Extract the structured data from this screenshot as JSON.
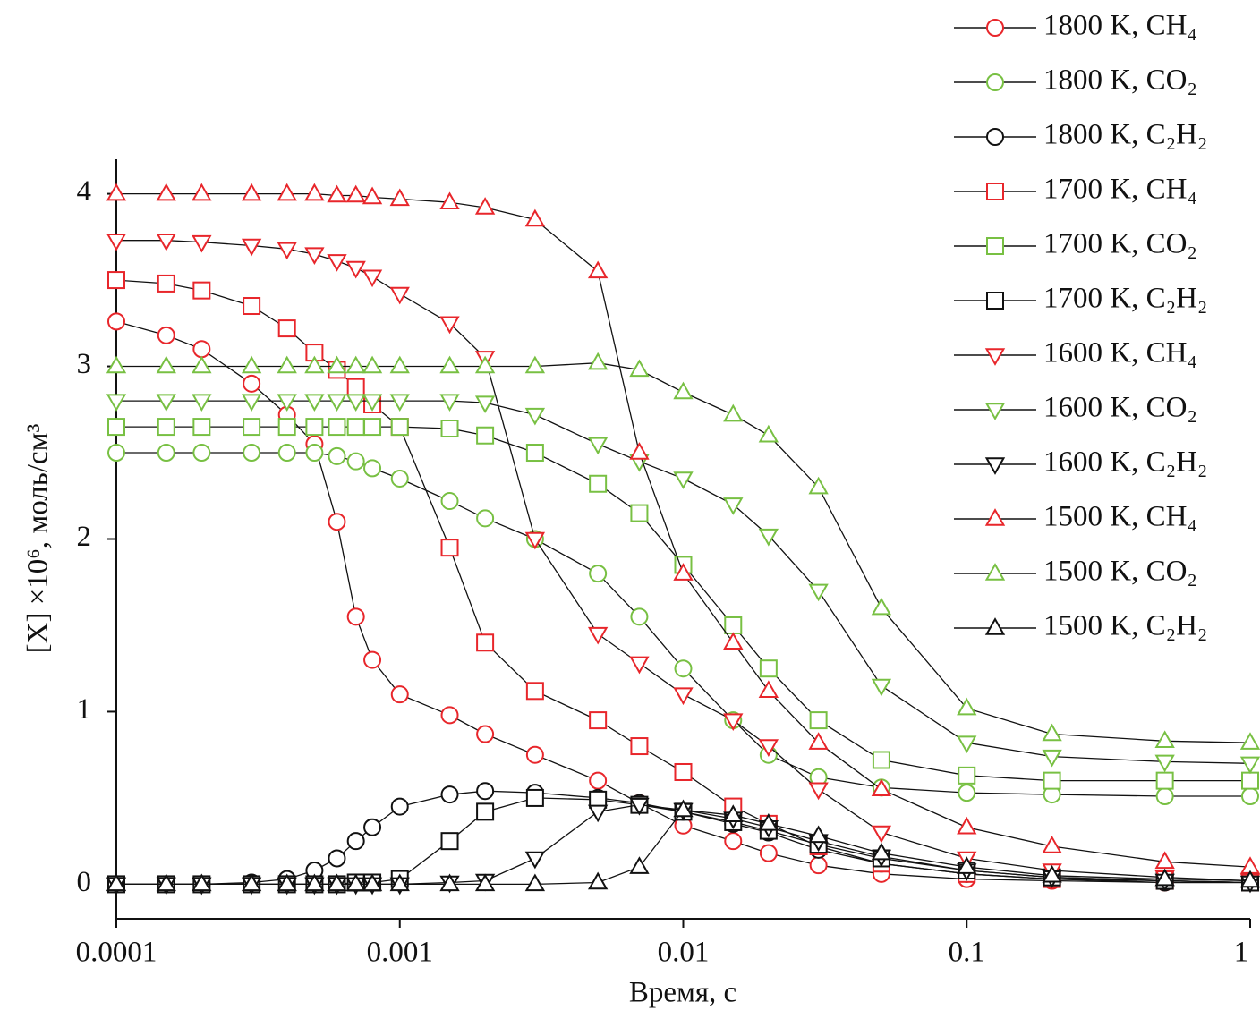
{
  "chart_data": {
    "type": "line",
    "xscale": "log",
    "x_label": "Время, с",
    "y_label": "[X] ×10⁶, моль/см³",
    "xlim": [
      0.0001,
      1
    ],
    "ylim": [
      -0.2,
      4.2
    ],
    "xticks": [
      0.0001,
      0.001,
      0.01,
      0.1,
      1
    ],
    "yticks": [
      0,
      1,
      2,
      3,
      4
    ],
    "legend": "top-right",
    "x": [
      0.0001,
      0.00015,
      0.0002,
      0.0003,
      0.0004,
      0.0005,
      0.0006,
      0.0007,
      0.0008,
      0.001,
      0.0015,
      0.002,
      0.003,
      0.005,
      0.007,
      0.01,
      0.015,
      0.02,
      0.03,
      0.05,
      0.1,
      0.2,
      0.5,
      1
    ],
    "series": [
      {
        "name": "1800 K, CH₄",
        "color": "#e8262b",
        "marker": "circle",
        "values": [
          3.26,
          3.18,
          3.1,
          2.9,
          2.72,
          2.55,
          2.1,
          1.55,
          1.3,
          1.1,
          0.98,
          0.87,
          0.75,
          0.6,
          0.47,
          0.34,
          0.25,
          0.18,
          0.11,
          0.06,
          0.03,
          0.02,
          0.01,
          0.01
        ]
      },
      {
        "name": "1800 K, CO₂",
        "color": "#78c043",
        "marker": "circle",
        "values": [
          2.5,
          2.5,
          2.5,
          2.5,
          2.5,
          2.5,
          2.48,
          2.45,
          2.41,
          2.35,
          2.22,
          2.12,
          2.0,
          1.8,
          1.55,
          1.25,
          0.95,
          0.75,
          0.62,
          0.56,
          0.53,
          0.52,
          0.51,
          0.51
        ]
      },
      {
        "name": "1800 K, C₂H₂",
        "color": "#111111",
        "marker": "circle",
        "values": [
          0,
          0,
          0,
          0.01,
          0.03,
          0.08,
          0.15,
          0.25,
          0.33,
          0.45,
          0.52,
          0.54,
          0.53,
          0.5,
          0.47,
          0.42,
          0.35,
          0.3,
          0.2,
          0.12,
          0.06,
          0.03,
          0.01,
          0.01
        ]
      },
      {
        "name": "1700 K, CH₄",
        "color": "#e8262b",
        "marker": "square",
        "values": [
          3.5,
          3.48,
          3.44,
          3.35,
          3.22,
          3.08,
          2.98,
          2.88,
          2.78,
          2.65,
          1.95,
          1.4,
          1.12,
          0.95,
          0.8,
          0.65,
          0.45,
          0.35,
          0.22,
          0.12,
          0.06,
          0.03,
          0.02,
          0.01
        ]
      },
      {
        "name": "1700 K, CO₂",
        "color": "#78c043",
        "marker": "square",
        "values": [
          2.65,
          2.65,
          2.65,
          2.65,
          2.65,
          2.65,
          2.65,
          2.65,
          2.65,
          2.65,
          2.64,
          2.6,
          2.5,
          2.32,
          2.15,
          1.85,
          1.5,
          1.25,
          0.95,
          0.72,
          0.63,
          0.6,
          0.6,
          0.6
        ]
      },
      {
        "name": "1700 K, C₂H₂",
        "color": "#111111",
        "marker": "square",
        "values": [
          0,
          0,
          0,
          0,
          0,
          0,
          0,
          0.01,
          0.01,
          0.03,
          0.25,
          0.42,
          0.5,
          0.49,
          0.46,
          0.42,
          0.36,
          0.31,
          0.23,
          0.15,
          0.08,
          0.04,
          0.02,
          0.01
        ]
      },
      {
        "name": "1600 K, CH₄",
        "color": "#e8262b",
        "marker": "triangle-down",
        "values": [
          3.73,
          3.73,
          3.72,
          3.7,
          3.68,
          3.65,
          3.61,
          3.57,
          3.52,
          3.42,
          3.25,
          3.05,
          2.0,
          1.45,
          1.28,
          1.1,
          0.95,
          0.8,
          0.55,
          0.3,
          0.15,
          0.08,
          0.04,
          0.02
        ]
      },
      {
        "name": "1600 K, CO₂",
        "color": "#78c043",
        "marker": "triangle-down",
        "values": [
          2.8,
          2.8,
          2.8,
          2.8,
          2.8,
          2.8,
          2.8,
          2.8,
          2.8,
          2.8,
          2.8,
          2.79,
          2.72,
          2.55,
          2.45,
          2.35,
          2.2,
          2.02,
          1.7,
          1.15,
          0.82,
          0.74,
          0.71,
          0.7
        ]
      },
      {
        "name": "1600 K, C₂H₂",
        "color": "#111111",
        "marker": "triangle-down",
        "values": [
          0,
          0,
          0,
          0,
          0,
          0,
          0,
          0,
          0,
          0,
          0.01,
          0.02,
          0.15,
          0.42,
          0.46,
          0.43,
          0.38,
          0.33,
          0.25,
          0.16,
          0.08,
          0.04,
          0.02,
          0.01
        ]
      },
      {
        "name": "1500 K, CH₄",
        "color": "#e8262b",
        "marker": "triangle-up",
        "values": [
          4.0,
          4.0,
          4.0,
          4.0,
          4.0,
          4.0,
          3.99,
          3.99,
          3.98,
          3.97,
          3.95,
          3.92,
          3.85,
          3.55,
          2.5,
          1.8,
          1.4,
          1.12,
          0.82,
          0.55,
          0.33,
          0.22,
          0.13,
          0.1
        ]
      },
      {
        "name": "1500 K, CO₂",
        "color": "#78c043",
        "marker": "triangle-up",
        "values": [
          3.0,
          3.0,
          3.0,
          3.0,
          3.0,
          3.0,
          3.0,
          3.0,
          3.0,
          3.0,
          3.0,
          3.0,
          3.0,
          3.02,
          2.98,
          2.85,
          2.72,
          2.6,
          2.3,
          1.6,
          1.02,
          0.87,
          0.83,
          0.82
        ]
      },
      {
        "name": "1500 K, C₂H₂",
        "color": "#111111",
        "marker": "triangle-up",
        "values": [
          0,
          0,
          0,
          0,
          0,
          0,
          0,
          0,
          0,
          0,
          0,
          0,
          0,
          0.01,
          0.1,
          0.43,
          0.4,
          0.35,
          0.28,
          0.18,
          0.1,
          0.05,
          0.03,
          0.02
        ]
      }
    ]
  }
}
